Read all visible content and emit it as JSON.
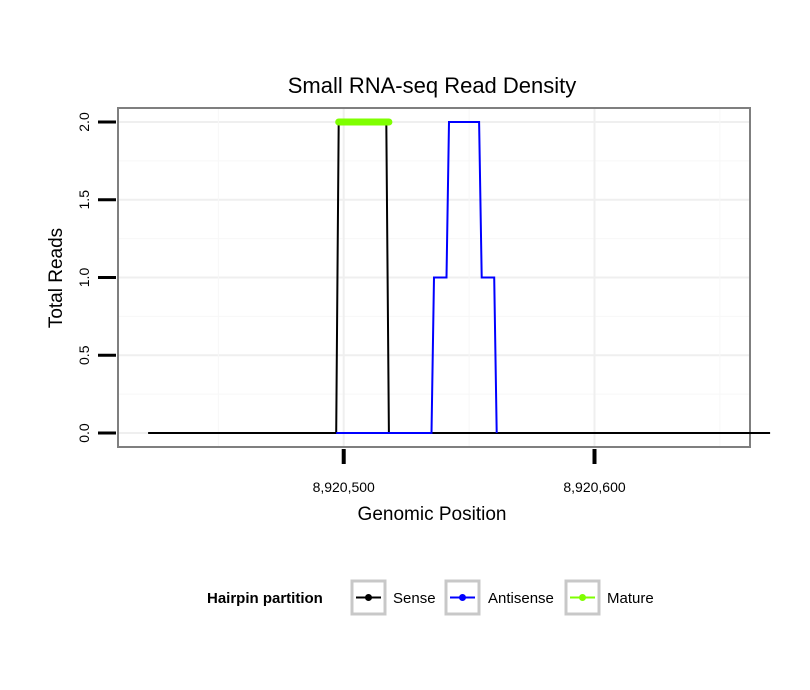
{
  "chart_data": {
    "type": "line",
    "title": "Small RNA-seq Read Density",
    "xlabel": "Genomic Position",
    "ylabel": "Total Reads",
    "xlim": [
      8920410,
      8920662
    ],
    "ylim": [
      -0.09,
      2.09
    ],
    "x_ticks": [
      8920500,
      8920600
    ],
    "x_tick_labels": [
      "8,920,500",
      "8,920,600"
    ],
    "y_ticks": [
      0,
      0.5,
      1,
      1.5,
      2
    ],
    "y_tick_labels": [
      "0.0",
      "0.5",
      "1.0",
      "1.5",
      "2.0"
    ],
    "grid": true,
    "legend_position": "bottom",
    "legend_title": "Hairpin partition",
    "series": [
      {
        "name": "Sense",
        "color": "#000000",
        "x": [
          8920422,
          8920497,
          8920498,
          8920517,
          8920518,
          8920670
        ],
        "y": [
          0,
          0,
          2,
          2,
          0,
          0
        ]
      },
      {
        "name": "Antisense",
        "color": "#0000ff",
        "x": [
          8920497,
          8920518,
          8920535,
          8920536,
          8920541,
          8920542,
          8920554,
          8920555,
          8920560,
          8920561
        ],
        "y": [
          0,
          0,
          0,
          1,
          1,
          2,
          2,
          1,
          1,
          0
        ]
      },
      {
        "name": "Mature",
        "color": "#7fff00",
        "x": [
          8920498,
          8920518
        ],
        "y": [
          2,
          2
        ]
      }
    ]
  }
}
